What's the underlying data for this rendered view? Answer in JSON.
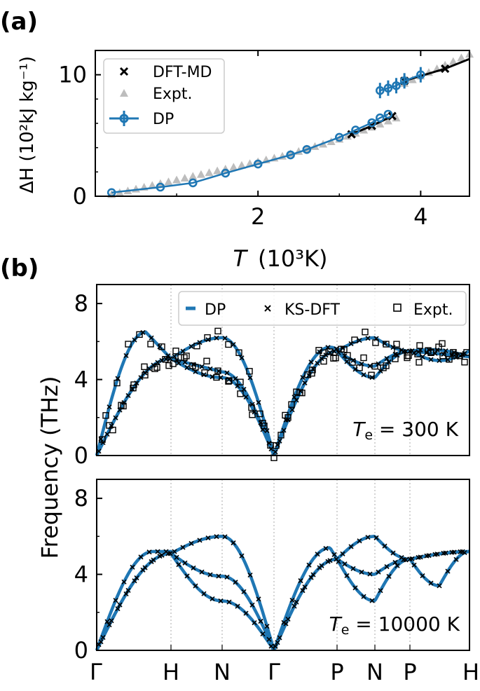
{
  "chart_data": [
    {
      "panel": "(a)",
      "type": "line",
      "xlabel": {
        "italic": "T",
        "unit": "(10³K)"
      },
      "ylabel": "ΔH (10²kJ kg⁻¹)",
      "xlim": [
        0.0,
        4.6
      ],
      "ylim": [
        0,
        12
      ],
      "xticks": [
        2,
        4
      ],
      "yticks": [
        0,
        10
      ],
      "legend_position": "top-left",
      "legend": [
        "DFT-MD",
        "Expt.",
        "DP"
      ],
      "series": [
        {
          "name": "DFT-MD",
          "marker": "x",
          "color": "#000000",
          "segments": [
            {
              "x": [
                3.15,
                3.4,
                3.65
              ],
              "y": [
                5.1,
                5.8,
                6.6
              ]
            },
            {
              "x": [
                3.8,
                4.3,
                4.6
              ],
              "y": [
                9.5,
                10.5,
                11.3
              ]
            }
          ]
        },
        {
          "name": "Expt.",
          "marker": "triangle",
          "color": "#bdbdbd",
          "x": [
            0.2,
            0.3,
            0.4,
            0.5,
            0.6,
            0.7,
            0.8,
            0.9,
            1.0,
            1.1,
            1.2,
            1.3,
            1.4,
            1.5,
            1.6,
            1.7,
            1.8,
            1.9,
            2.0,
            2.1,
            2.2,
            2.3,
            2.4,
            2.5,
            2.6,
            2.7,
            2.8,
            2.9,
            3.0,
            3.1,
            3.2,
            3.3,
            3.4,
            3.5,
            3.6,
            3.7,
            3.8,
            3.9,
            4.0,
            4.1,
            4.2,
            4.3,
            4.4,
            4.5,
            4.6
          ],
          "y": [
            0.15,
            0.3,
            0.45,
            0.6,
            0.75,
            0.9,
            1.05,
            1.2,
            1.35,
            1.5,
            1.65,
            1.8,
            1.95,
            2.1,
            2.25,
            2.4,
            2.55,
            2.7,
            2.85,
            3.0,
            3.15,
            3.3,
            3.5,
            3.7,
            3.9,
            4.1,
            4.3,
            4.5,
            4.7,
            4.95,
            5.2,
            5.45,
            5.7,
            5.95,
            6.2,
            6.45,
            9.3,
            9.6,
            9.9,
            10.2,
            10.5,
            10.8,
            11.1,
            11.4,
            11.7
          ]
        },
        {
          "name": "DP",
          "marker": "o",
          "color": "#1f77b4",
          "segments": [
            {
              "x": [
                0.2,
                0.8,
                1.2,
                1.6,
                2.0,
                2.4,
                2.6,
                3.0,
                3.2,
                3.4,
                3.5,
                3.6
              ],
              "y": [
                0.3,
                0.75,
                1.1,
                1.9,
                2.65,
                3.4,
                3.85,
                4.85,
                5.45,
                6.05,
                6.45,
                6.75
              ]
            },
            {
              "x": [
                3.5,
                3.6,
                3.7,
                3.8,
                4.0
              ],
              "y": [
                8.7,
                8.9,
                9.1,
                9.5,
                10.0
              ]
            }
          ]
        }
      ]
    },
    {
      "panel": "(b)",
      "type": "line",
      "ylabel": "Frequency (THz)",
      "shared_xlabels": [
        "Γ",
        "H",
        "N",
        "Γ",
        "P",
        "N",
        "P",
        "H"
      ],
      "legend": [
        "DP",
        "KS-DFT",
        "Expt."
      ],
      "legend_position": "top-right",
      "subplots": [
        {
          "annotation": {
            "symbol": "T",
            "sub": "e",
            "rest": " = 300 K"
          },
          "ylim": [
            0,
            9
          ],
          "yticks": [
            0,
            4,
            8
          ]
        },
        {
          "annotation": {
            "symbol": "T",
            "sub": "e",
            "rest": " = 10000 K"
          },
          "ylim": [
            0,
            9
          ],
          "yticks": [
            0,
            4,
            8
          ]
        }
      ]
    }
  ]
}
